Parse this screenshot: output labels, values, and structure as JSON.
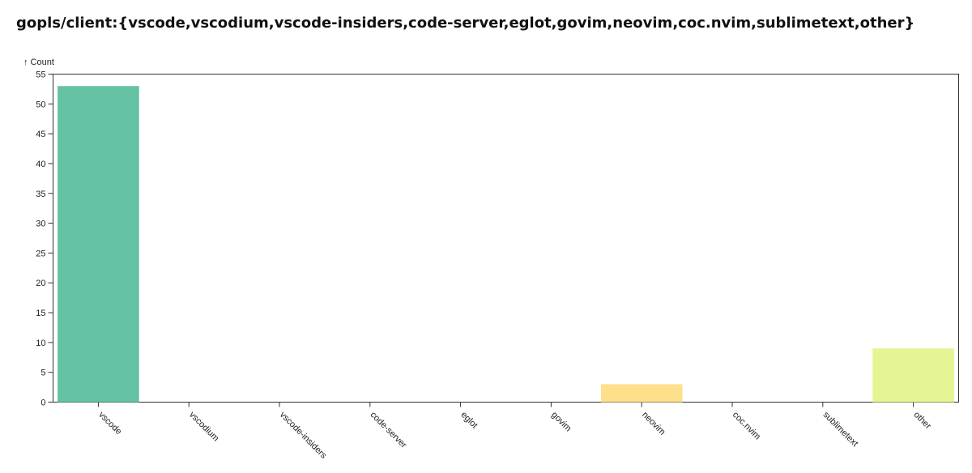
{
  "title": "gopls/client:{vscode,vscodium,vscode-insiders,code-server,eglot,govim,neovim,coc.nvim,sublimetext,other}",
  "chart_data": {
    "type": "bar",
    "title": "gopls/client:{vscode,vscodium,vscode-insiders,code-server,eglot,govim,neovim,coc.nvim,sublimetext,other}",
    "ylabel": "↑ Count",
    "xlabel": "",
    "ylim": [
      0,
      55
    ],
    "yticks": [
      0,
      5,
      10,
      15,
      20,
      25,
      30,
      35,
      40,
      45,
      50,
      55
    ],
    "categories": [
      "vscode",
      "vscodium",
      "vscode-insiders",
      "code-server",
      "eglot",
      "govim",
      "neovim",
      "coc.nvim",
      "sublimetext",
      "other"
    ],
    "values": [
      53,
      0,
      0,
      0,
      0,
      0,
      3,
      0,
      0,
      9
    ],
    "colors": [
      "#66c2a5",
      "#79c79b",
      "#93cf95",
      "#acd68f",
      "#c5dd8b",
      "#e0e58b",
      "#fedf8b",
      "#f0e68c",
      "#e8f08e",
      "#e6f593"
    ],
    "grid": false,
    "legend": "none"
  }
}
